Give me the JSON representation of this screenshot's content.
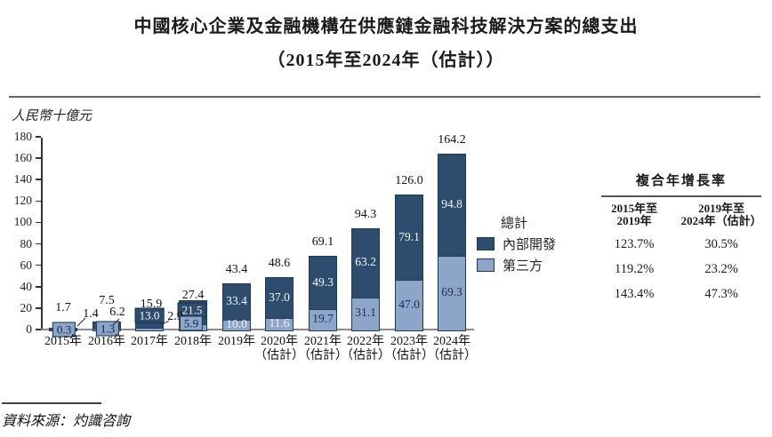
{
  "chart_data": {
    "type": "bar",
    "stacked": true,
    "title": "中國核心企業及金融機構在供應鏈金融科技解決方案的總支出",
    "subtitle": "（2015年至2024年（估計））",
    "unit_label": "人民幣十億元",
    "ylim": [
      0,
      180
    ],
    "yticks": [
      0,
      20,
      40,
      60,
      80,
      100,
      120,
      140,
      160,
      180
    ],
    "grid": false,
    "legend_position": "right",
    "categories": [
      {
        "label": "2015年",
        "sublabel": ""
      },
      {
        "label": "2016年",
        "sublabel": ""
      },
      {
        "label": "2017年",
        "sublabel": ""
      },
      {
        "label": "2018年",
        "sublabel": ""
      },
      {
        "label": "2019年",
        "sublabel": ""
      },
      {
        "label": "2020年",
        "sublabel": "（估計）"
      },
      {
        "label": "2021年",
        "sublabel": "（估計）"
      },
      {
        "label": "2022年",
        "sublabel": "（估計）"
      },
      {
        "label": "2023年",
        "sublabel": "（估計）"
      },
      {
        "label": "2024年",
        "sublabel": "（估計）"
      }
    ],
    "series": [
      {
        "name": "內部開發",
        "color": "#2e4d6e",
        "values": [
          1.4,
          6.2,
          13.0,
          21.5,
          33.4,
          37.0,
          49.3,
          63.2,
          79.1,
          94.8
        ],
        "labels": [
          "1.4",
          "6.2",
          "13.0",
          "21.5",
          "33.4",
          "37.0",
          "49.3",
          "63.2",
          "79.1",
          "94.8"
        ]
      },
      {
        "name": "第三方",
        "color": "#8ca5c9",
        "values": [
          0.3,
          1.3,
          2.9,
          5.9,
          10.0,
          11.6,
          19.7,
          31.1,
          47.0,
          69.3
        ],
        "labels": [
          "0.3",
          "1.3",
          "2.9",
          "5.9",
          "10.0",
          "11.6",
          "19.7",
          "31.1",
          "47.0",
          "69.3"
        ]
      }
    ],
    "totals": {
      "name": "總計",
      "values": [
        1.7,
        7.5,
        15.9,
        27.4,
        43.4,
        48.6,
        69.1,
        94.3,
        126.0,
        164.2
      ],
      "labels": [
        "1.7",
        "7.5",
        "15.9",
        "27.4",
        "43.4",
        "48.6",
        "69.1",
        "94.3",
        "126.0",
        "164.2"
      ]
    }
  },
  "legend": {
    "total_label": "總計",
    "internal_label": "內部開發",
    "third_party_label": "第三方"
  },
  "cagr_table": {
    "title": "複合年增長率",
    "columns": [
      {
        "line1": "2015年至",
        "line2": "2019年"
      },
      {
        "line1": "2019年至",
        "line2": "2024年（估計）"
      }
    ],
    "rows": [
      [
        "123.7%",
        "30.5%"
      ],
      [
        "119.2%",
        "23.2%"
      ],
      [
        "143.4%",
        "47.3%"
      ]
    ]
  },
  "source": "資料來源：灼識咨詢",
  "colors": {
    "internal": "#2e4d6e",
    "third_party": "#8ca5c9",
    "segment_border": "#1d3a58",
    "axis_gray": "#8a8a8a",
    "rule_gray": "#666666"
  }
}
